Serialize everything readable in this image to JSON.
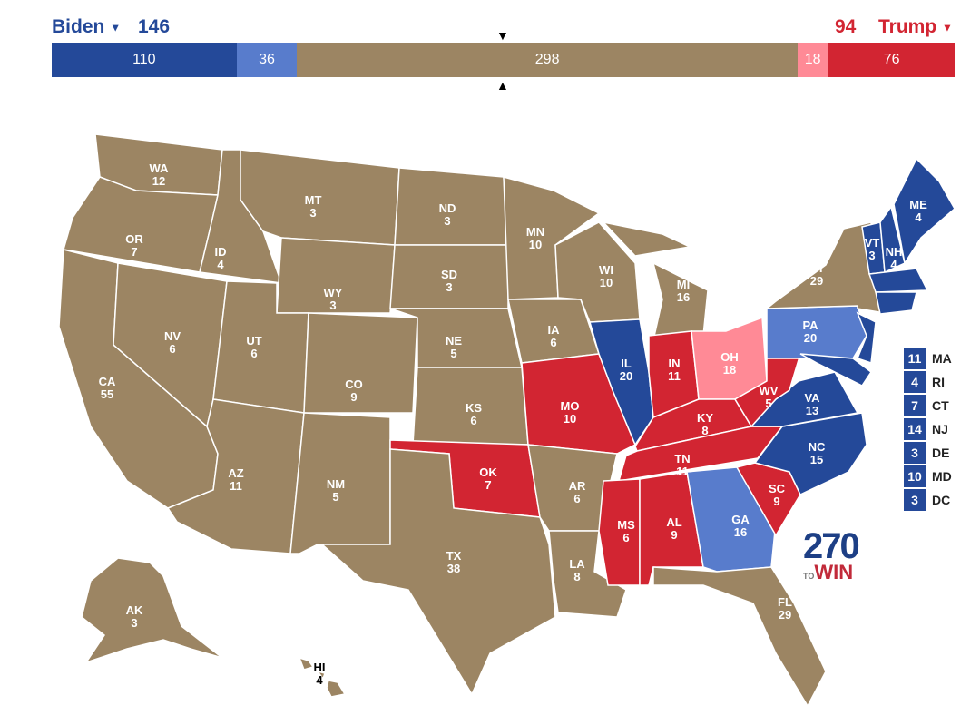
{
  "colors": {
    "safe_d": "#244999",
    "lean_d": "#587ccc",
    "tossup": "#9c8563",
    "lean_r": "#ff8a96",
    "safe_r": "#d22532"
  },
  "header": {
    "dem_name": "Biden",
    "dem_total": "146",
    "rep_total": "94",
    "rep_name": "Trump"
  },
  "bar": [
    {
      "key": "safe_d",
      "value": 110
    },
    {
      "key": "lean_d",
      "value": 36
    },
    {
      "key": "tossup",
      "value": 298
    },
    {
      "key": "lean_r",
      "value": 18
    },
    {
      "key": "safe_r",
      "value": 76
    }
  ],
  "states": [
    {
      "abbr": "WA",
      "ev": 12,
      "rating": "tossup"
    },
    {
      "abbr": "OR",
      "ev": 7,
      "rating": "tossup"
    },
    {
      "abbr": "CA",
      "ev": 55,
      "rating": "tossup"
    },
    {
      "abbr": "NV",
      "ev": 6,
      "rating": "tossup"
    },
    {
      "abbr": "ID",
      "ev": 4,
      "rating": "tossup"
    },
    {
      "abbr": "MT",
      "ev": 3,
      "rating": "tossup"
    },
    {
      "abbr": "WY",
      "ev": 3,
      "rating": "tossup"
    },
    {
      "abbr": "UT",
      "ev": 6,
      "rating": "tossup"
    },
    {
      "abbr": "AZ",
      "ev": 11,
      "rating": "tossup"
    },
    {
      "abbr": "CO",
      "ev": 9,
      "rating": "tossup"
    },
    {
      "abbr": "NM",
      "ev": 5,
      "rating": "tossup"
    },
    {
      "abbr": "ND",
      "ev": 3,
      "rating": "tossup"
    },
    {
      "abbr": "SD",
      "ev": 3,
      "rating": "tossup"
    },
    {
      "abbr": "NE",
      "ev": 5,
      "rating": "tossup"
    },
    {
      "abbr": "KS",
      "ev": 6,
      "rating": "tossup"
    },
    {
      "abbr": "OK",
      "ev": 7,
      "rating": "safe_r"
    },
    {
      "abbr": "TX",
      "ev": 38,
      "rating": "tossup"
    },
    {
      "abbr": "MN",
      "ev": 10,
      "rating": "tossup"
    },
    {
      "abbr": "IA",
      "ev": 6,
      "rating": "tossup"
    },
    {
      "abbr": "MO",
      "ev": 10,
      "rating": "safe_r"
    },
    {
      "abbr": "AR",
      "ev": 6,
      "rating": "tossup"
    },
    {
      "abbr": "LA",
      "ev": 8,
      "rating": "tossup"
    },
    {
      "abbr": "WI",
      "ev": 10,
      "rating": "tossup"
    },
    {
      "abbr": "IL",
      "ev": 20,
      "rating": "safe_d"
    },
    {
      "abbr": "MI",
      "ev": 16,
      "rating": "tossup"
    },
    {
      "abbr": "IN",
      "ev": 11,
      "rating": "safe_r"
    },
    {
      "abbr": "OH",
      "ev": 18,
      "rating": "lean_r"
    },
    {
      "abbr": "KY",
      "ev": 8,
      "rating": "safe_r"
    },
    {
      "abbr": "TN",
      "ev": 11,
      "rating": "safe_r"
    },
    {
      "abbr": "MS",
      "ev": 6,
      "rating": "safe_r"
    },
    {
      "abbr": "AL",
      "ev": 9,
      "rating": "safe_r"
    },
    {
      "abbr": "GA",
      "ev": 16,
      "rating": "lean_d"
    },
    {
      "abbr": "FL",
      "ev": 29,
      "rating": "tossup"
    },
    {
      "abbr": "SC",
      "ev": 9,
      "rating": "safe_r"
    },
    {
      "abbr": "NC",
      "ev": 15,
      "rating": "safe_d"
    },
    {
      "abbr": "VA",
      "ev": 13,
      "rating": "safe_d"
    },
    {
      "abbr": "WV",
      "ev": 5,
      "rating": "safe_r"
    },
    {
      "abbr": "PA",
      "ev": 20,
      "rating": "lean_d"
    },
    {
      "abbr": "NY",
      "ev": 29,
      "rating": "tossup"
    },
    {
      "abbr": "VT",
      "ev": 3,
      "rating": "safe_d"
    },
    {
      "abbr": "NH",
      "ev": 4,
      "rating": "safe_d"
    },
    {
      "abbr": "ME",
      "ev": 4,
      "rating": "safe_d"
    },
    {
      "abbr": "AK",
      "ev": 3,
      "rating": "tossup"
    },
    {
      "abbr": "HI",
      "ev": 4,
      "rating": "tossup"
    }
  ],
  "small_states": [
    {
      "abbr": "MA",
      "ev": "11"
    },
    {
      "abbr": "RI",
      "ev": "4"
    },
    {
      "abbr": "CT",
      "ev": "7"
    },
    {
      "abbr": "NJ",
      "ev": "14"
    },
    {
      "abbr": "DE",
      "ev": "3"
    },
    {
      "abbr": "MD",
      "ev": "10"
    },
    {
      "abbr": "DC",
      "ev": "3"
    }
  ],
  "logo": {
    "number": "270",
    "to": "TO",
    "win": "WIN"
  }
}
